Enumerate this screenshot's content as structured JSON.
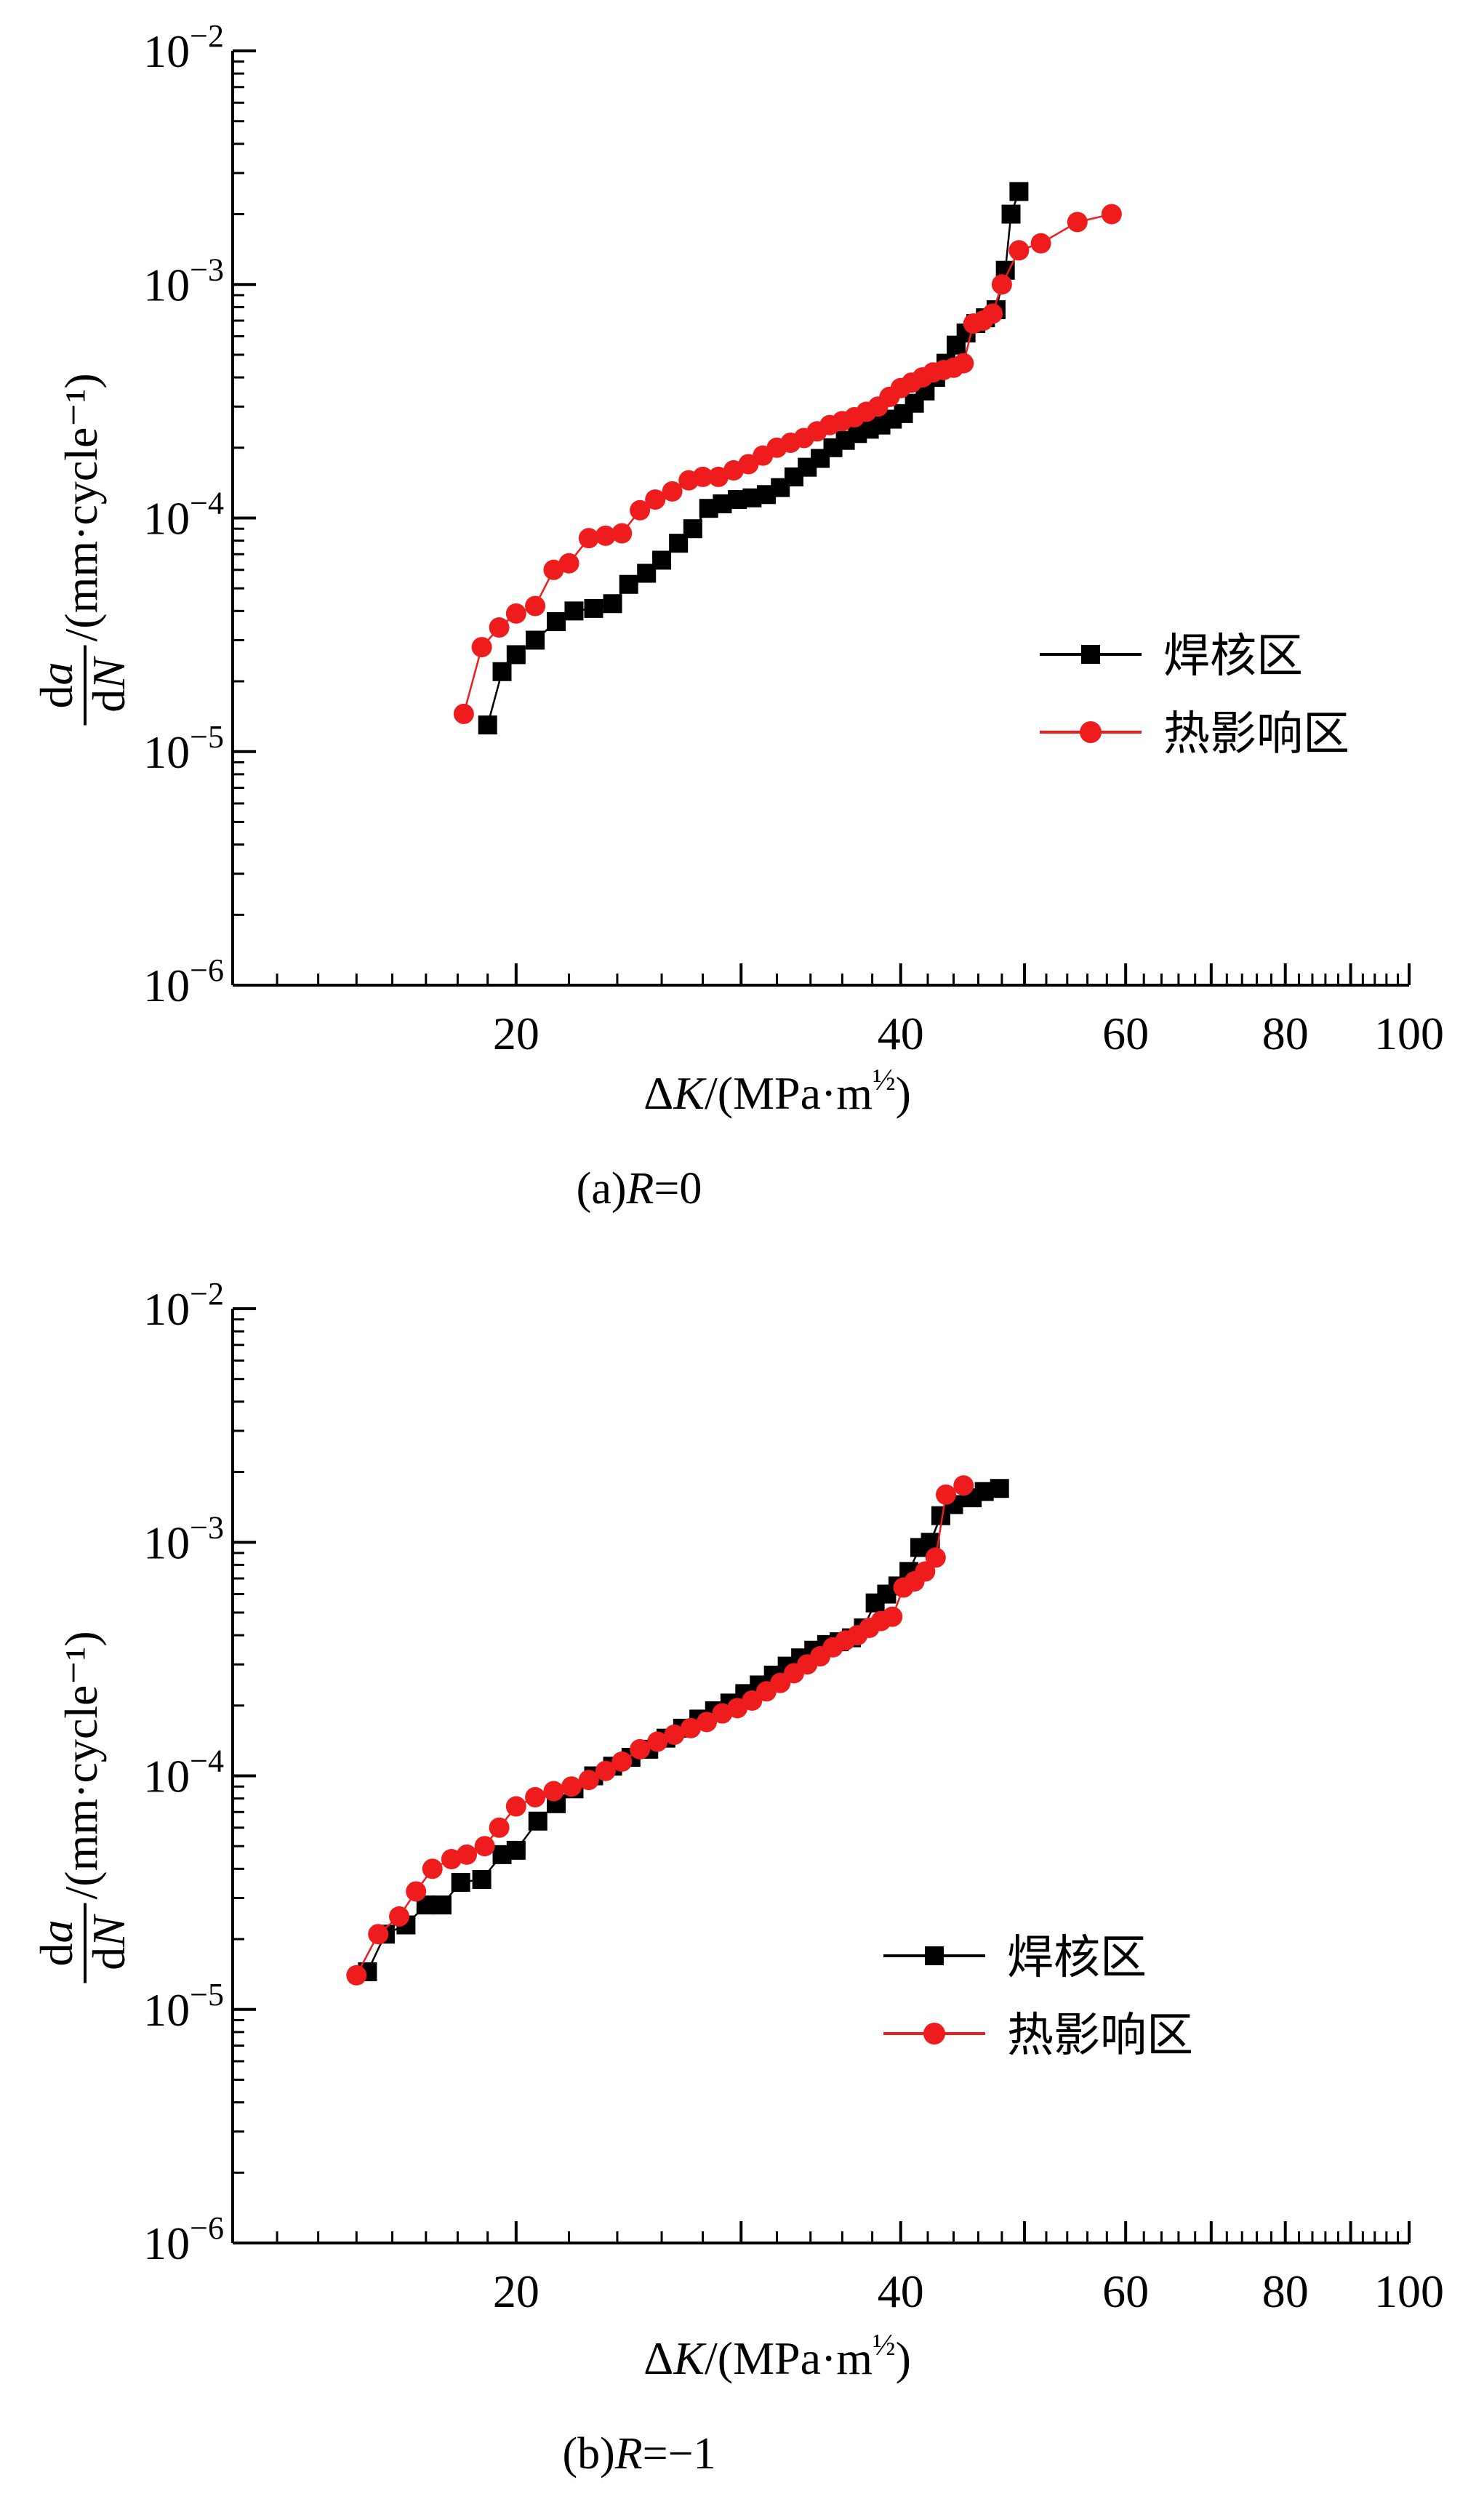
{
  "chart_data": [
    {
      "type": "scatter",
      "caption": "(a)R=0",
      "xlabel": "ΔK/(MPa·m½)",
      "ylabel": "da/dN /(mm·cycle⁻¹)",
      "xscale": "log",
      "yscale": "log",
      "xlim": [
        12,
        100
      ],
      "ylim": [
        1e-06,
        0.01
      ],
      "xticks": [
        20,
        40,
        60,
        80,
        100
      ],
      "yticks": [
        "10^-2",
        "10^-3",
        "10^-4",
        "10^-5",
        "10^-6"
      ],
      "legend_position": "right",
      "series": [
        {
          "name": "焊核区",
          "color": "#000000",
          "marker": "square",
          "points": [
            [
              19.0,
              1.3e-05
            ],
            [
              19.5,
              2.2e-05
            ],
            [
              20.0,
              2.6e-05
            ],
            [
              20.7,
              3e-05
            ],
            [
              21.5,
              3.6e-05
            ],
            [
              22.2,
              4e-05
            ],
            [
              23.0,
              4.1e-05
            ],
            [
              23.8,
              4.3e-05
            ],
            [
              24.5,
              5.2e-05
            ],
            [
              25.3,
              5.8e-05
            ],
            [
              26.0,
              6.6e-05
            ],
            [
              26.8,
              7.8e-05
            ],
            [
              27.5,
              9e-05
            ],
            [
              28.3,
              0.00011
            ],
            [
              29.0,
              0.000115
            ],
            [
              29.8,
              0.00012
            ],
            [
              30.6,
              0.000122
            ],
            [
              31.4,
              0.000126
            ],
            [
              32.2,
              0.000135
            ],
            [
              33.0,
              0.00015
            ],
            [
              33.8,
              0.000165
            ],
            [
              34.6,
              0.00018
            ],
            [
              35.4,
              0.0002
            ],
            [
              36.2,
              0.000215
            ],
            [
              37.0,
              0.00023
            ],
            [
              37.8,
              0.00024
            ],
            [
              38.6,
              0.00025
            ],
            [
              39.4,
              0.000265
            ],
            [
              40.2,
              0.00028
            ],
            [
              41.0,
              0.00031
            ],
            [
              41.8,
              0.00035
            ],
            [
              42.6,
              0.0004
            ],
            [
              43.4,
              0.00046
            ],
            [
              44.2,
              0.00055
            ],
            [
              45.0,
              0.00062
            ],
            [
              45.8,
              0.00068
            ],
            [
              46.6,
              0.00072
            ],
            [
              47.5,
              0.00078
            ],
            [
              48.3,
              0.00115
            ],
            [
              48.8,
              0.002
            ],
            [
              49.5,
              0.0025
            ]
          ]
        },
        {
          "name": "热影响区",
          "color": "#ee1c1c",
          "marker": "circle",
          "points": [
            [
              18.2,
              1.45e-05
            ],
            [
              18.8,
              2.8e-05
            ],
            [
              19.4,
              3.4e-05
            ],
            [
              20.0,
              3.9e-05
            ],
            [
              20.7,
              4.2e-05
            ],
            [
              21.4,
              6e-05
            ],
            [
              22.0,
              6.4e-05
            ],
            [
              22.8,
              8.2e-05
            ],
            [
              23.5,
              8.4e-05
            ],
            [
              24.2,
              8.6e-05
            ],
            [
              25.0,
              0.000108
            ],
            [
              25.7,
              0.00012
            ],
            [
              26.5,
              0.00013
            ],
            [
              27.3,
              0.000145
            ],
            [
              28.0,
              0.00015
            ],
            [
              28.8,
              0.00015
            ],
            [
              29.6,
              0.00016
            ],
            [
              30.4,
              0.00017
            ],
            [
              31.2,
              0.000185
            ],
            [
              32.0,
              0.0002
            ],
            [
              32.8,
              0.00021
            ],
            [
              33.6,
              0.00022
            ],
            [
              34.4,
              0.000235
            ],
            [
              35.2,
              0.00025
            ],
            [
              36.0,
              0.00026
            ],
            [
              36.8,
              0.00027
            ],
            [
              37.6,
              0.000285
            ],
            [
              38.4,
              0.0003
            ],
            [
              39.2,
              0.00033
            ],
            [
              40.0,
              0.00036
            ],
            [
              40.8,
              0.00038
            ],
            [
              41.6,
              0.0004
            ],
            [
              42.4,
              0.00042
            ],
            [
              43.2,
              0.00043
            ],
            [
              44.0,
              0.00044
            ],
            [
              44.8,
              0.00046
            ],
            [
              45.6,
              0.00068
            ],
            [
              46.4,
              0.0007
            ],
            [
              47.2,
              0.00075
            ],
            [
              48.0,
              0.001
            ],
            [
              49.5,
              0.0014
            ],
            [
              51.5,
              0.0015
            ],
            [
              55.0,
              0.00185
            ],
            [
              58.5,
              0.002
            ]
          ]
        }
      ]
    },
    {
      "type": "scatter",
      "caption": "(b)R=−1",
      "xlabel": "ΔK/(MPa·m½)",
      "ylabel": "da/dN /(mm·cycle⁻¹)",
      "xscale": "log",
      "yscale": "log",
      "xlim": [
        12,
        100
      ],
      "ylim": [
        1e-06,
        0.01
      ],
      "xticks": [
        20,
        40,
        60,
        80,
        100
      ],
      "yticks": [
        "10^-2",
        "10^-3",
        "10^-4",
        "10^-5",
        "10^-6"
      ],
      "legend_position": "right",
      "series": [
        {
          "name": "焊核区",
          "color": "#000000",
          "marker": "square",
          "points": [
            [
              15.3,
              1.45e-05
            ],
            [
              15.8,
              2.1e-05
            ],
            [
              16.4,
              2.3e-05
            ],
            [
              17.0,
              2.8e-05
            ],
            [
              17.5,
              2.8e-05
            ],
            [
              18.1,
              3.5e-05
            ],
            [
              18.8,
              3.6e-05
            ],
            [
              19.5,
              4.6e-05
            ],
            [
              20.0,
              4.8e-05
            ],
            [
              20.8,
              6.4e-05
            ],
            [
              21.5,
              7.6e-05
            ],
            [
              22.2,
              8.8e-05
            ],
            [
              23.0,
              0.0001
            ],
            [
              23.8,
              0.00011
            ],
            [
              24.6,
              0.00012
            ],
            [
              25.4,
              0.00013
            ],
            [
              26.2,
              0.000145
            ],
            [
              27.0,
              0.00016
            ],
            [
              27.8,
              0.000175
            ],
            [
              28.6,
              0.00019
            ],
            [
              29.4,
              0.000205
            ],
            [
              30.2,
              0.000225
            ],
            [
              31.0,
              0.000245
            ],
            [
              31.8,
              0.00027
            ],
            [
              32.6,
              0.000295
            ],
            [
              33.4,
              0.00032
            ],
            [
              34.2,
              0.000345
            ],
            [
              35.0,
              0.000365
            ],
            [
              35.8,
              0.000375
            ],
            [
              36.6,
              0.00039
            ],
            [
              37.4,
              0.00043
            ],
            [
              38.2,
              0.00055
            ],
            [
              39.0,
              0.0006
            ],
            [
              39.8,
              0.00065
            ],
            [
              40.6,
              0.00075
            ],
            [
              41.4,
              0.00095
            ],
            [
              42.2,
              0.001
            ],
            [
              43.0,
              0.0013
            ],
            [
              44.0,
              0.00145
            ],
            [
              45.5,
              0.00155
            ],
            [
              46.5,
              0.00165
            ],
            [
              47.8,
              0.0017
            ]
          ]
        },
        {
          "name": "热影响区",
          "color": "#ee1c1c",
          "marker": "circle",
          "points": [
            [
              15.0,
              1.4e-05
            ],
            [
              15.6,
              2.1e-05
            ],
            [
              16.2,
              2.5e-05
            ],
            [
              16.7,
              3.2e-05
            ],
            [
              17.2,
              4e-05
            ],
            [
              17.8,
              4.4e-05
            ],
            [
              18.3,
              4.6e-05
            ],
            [
              18.9,
              5e-05
            ],
            [
              19.4,
              6e-05
            ],
            [
              20.0,
              7.4e-05
            ],
            [
              20.7,
              8.1e-05
            ],
            [
              21.4,
              8.6e-05
            ],
            [
              22.1,
              9e-05
            ],
            [
              22.8,
              9.6e-05
            ],
            [
              23.5,
              0.000105
            ],
            [
              24.2,
              0.000115
            ],
            [
              25.0,
              0.00013
            ],
            [
              25.8,
              0.00014
            ],
            [
              26.6,
              0.00015
            ],
            [
              27.4,
              0.00016
            ],
            [
              28.2,
              0.00017
            ],
            [
              29.0,
              0.000185
            ],
            [
              29.8,
              0.000195
            ],
            [
              30.6,
              0.00021
            ],
            [
              31.4,
              0.00023
            ],
            [
              32.2,
              0.00025
            ],
            [
              33.0,
              0.000275
            ],
            [
              33.8,
              0.0003
            ],
            [
              34.6,
              0.000325
            ],
            [
              35.4,
              0.000355
            ],
            [
              36.2,
              0.00038
            ],
            [
              37.0,
              0.0004
            ],
            [
              37.8,
              0.00043
            ],
            [
              38.6,
              0.00046
            ],
            [
              39.4,
              0.00048
            ],
            [
              40.2,
              0.00064
            ],
            [
              41.0,
              0.00068
            ],
            [
              41.8,
              0.00075
            ],
            [
              42.6,
              0.00086
            ],
            [
              43.4,
              0.0016
            ],
            [
              44.8,
              0.00175
            ]
          ]
        }
      ]
    }
  ]
}
